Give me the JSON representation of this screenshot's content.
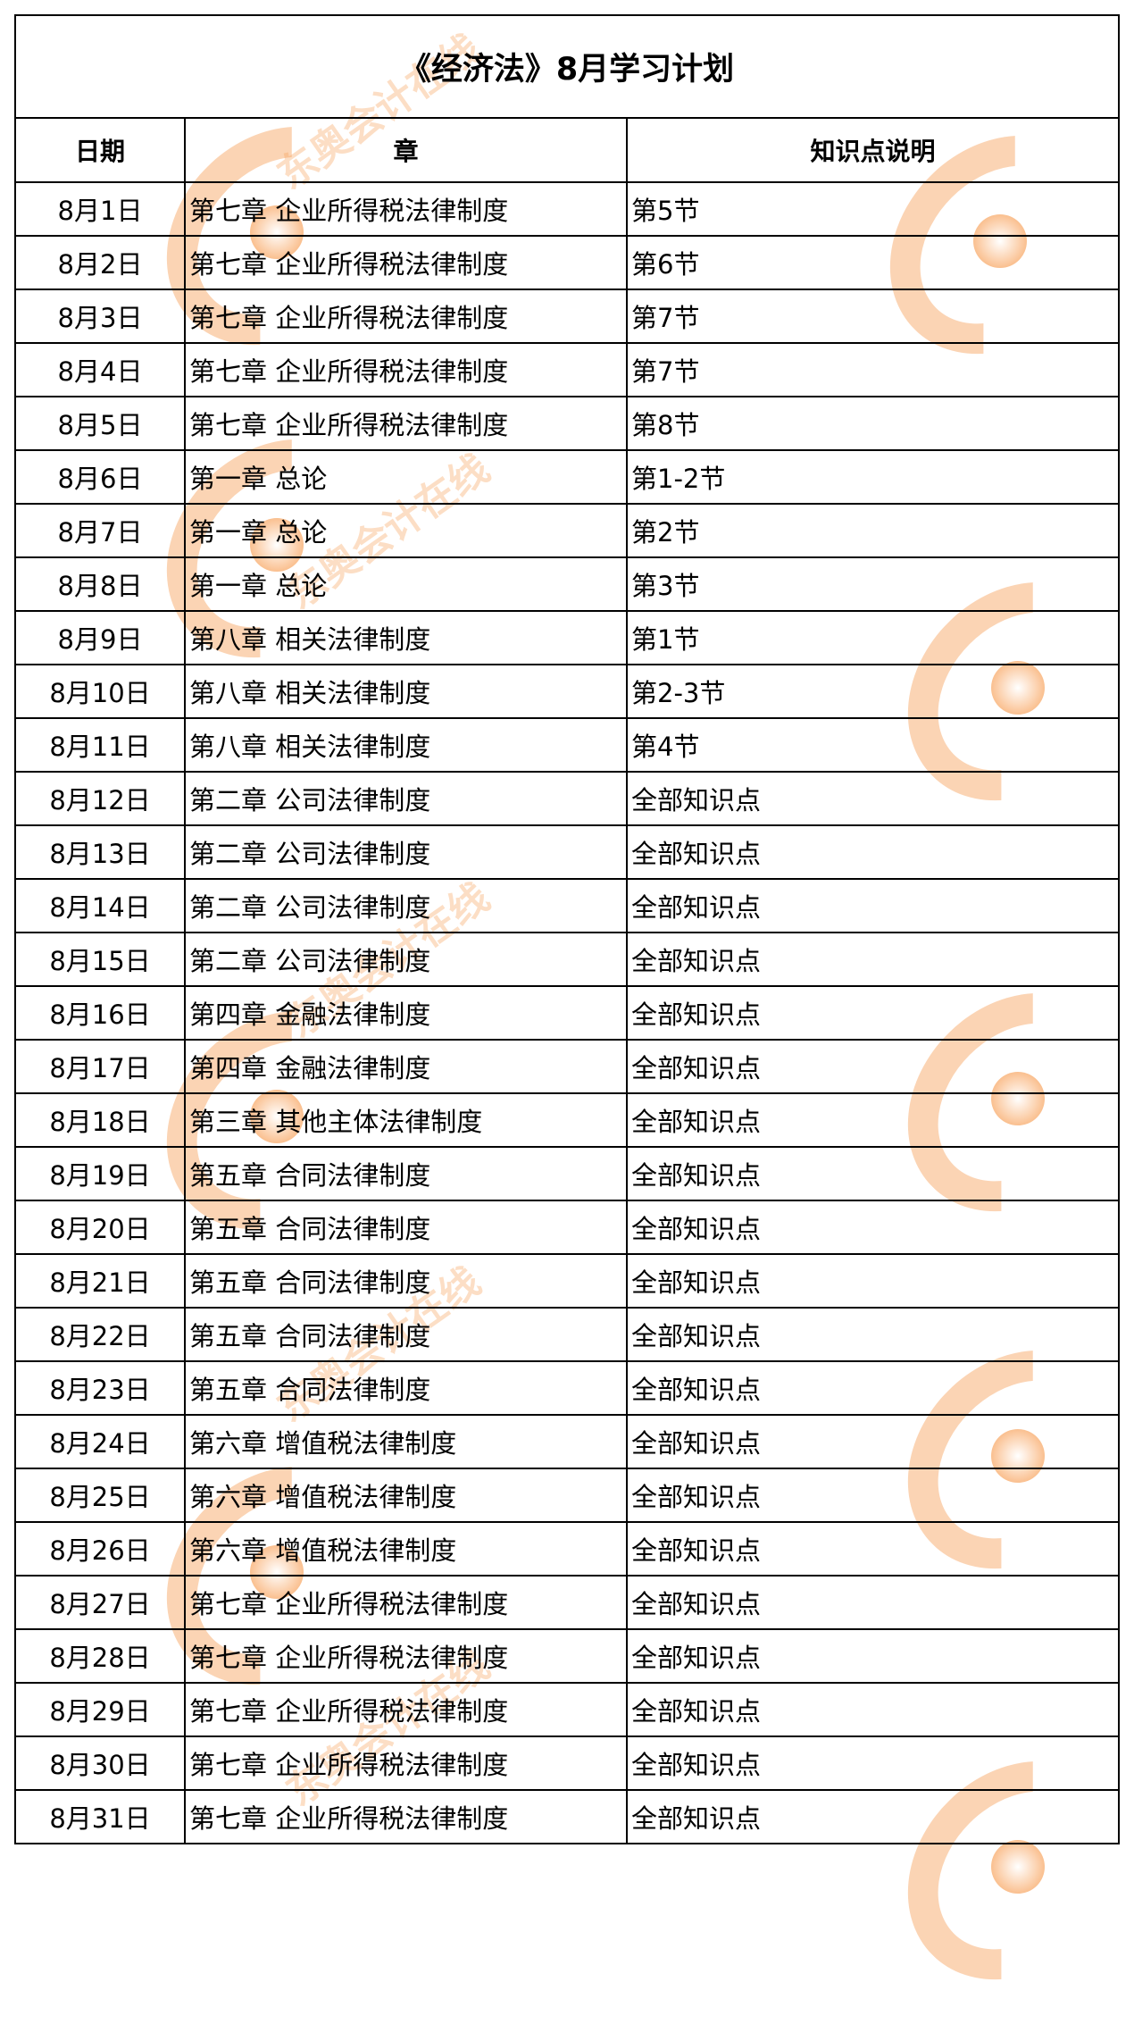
{
  "title": "《经济法》8月学习计划",
  "headers": {
    "date": "日期",
    "chapter": "章",
    "points": "知识点说明"
  },
  "rows": [
    {
      "date": "8月1日",
      "chapter": "第七章 企业所得税法律制度",
      "points": "第5节"
    },
    {
      "date": "8月2日",
      "chapter": "第七章 企业所得税法律制度",
      "points": "第6节"
    },
    {
      "date": "8月3日",
      "chapter": "第七章 企业所得税法律制度",
      "points": "第7节"
    },
    {
      "date": "8月4日",
      "chapter": "第七章 企业所得税法律制度",
      "points": "第7节"
    },
    {
      "date": "8月5日",
      "chapter": "第七章 企业所得税法律制度",
      "points": "第8节"
    },
    {
      "date": "8月6日",
      "chapter": "第一章 总论",
      "points": "第1-2节"
    },
    {
      "date": "8月7日",
      "chapter": "第一章 总论",
      "points": "第2节"
    },
    {
      "date": "8月8日",
      "chapter": "第一章 总论",
      "points": "第3节"
    },
    {
      "date": "8月9日",
      "chapter": "第八章 相关法律制度",
      "points": "第1节"
    },
    {
      "date": "8月10日",
      "chapter": "第八章 相关法律制度",
      "points": "第2-3节"
    },
    {
      "date": "8月11日",
      "chapter": "第八章 相关法律制度",
      "points": "第4节"
    },
    {
      "date": "8月12日",
      "chapter": "第二章 公司法律制度",
      "points": "全部知识点"
    },
    {
      "date": "8月13日",
      "chapter": "第二章 公司法律制度",
      "points": "全部知识点"
    },
    {
      "date": "8月14日",
      "chapter": "第二章 公司法律制度",
      "points": "全部知识点"
    },
    {
      "date": "8月15日",
      "chapter": "第二章 公司法律制度",
      "points": "全部知识点"
    },
    {
      "date": "8月16日",
      "chapter": "第四章 金融法律制度",
      "points": "全部知识点"
    },
    {
      "date": "8月17日",
      "chapter": "第四章 金融法律制度",
      "points": "全部知识点"
    },
    {
      "date": "8月18日",
      "chapter": "第三章 其他主体法律制度",
      "points": "全部知识点"
    },
    {
      "date": "8月19日",
      "chapter": "第五章 合同法律制度",
      "points": "全部知识点"
    },
    {
      "date": "8月20日",
      "chapter": "第五章 合同法律制度",
      "points": "全部知识点"
    },
    {
      "date": "8月21日",
      "chapter": "第五章 合同法律制度",
      "points": "全部知识点"
    },
    {
      "date": "8月22日",
      "chapter": "第五章 合同法律制度",
      "points": "全部知识点"
    },
    {
      "date": "8月23日",
      "chapter": "第五章 合同法律制度",
      "points": "全部知识点"
    },
    {
      "date": "8月24日",
      "chapter": "第六章 增值税法律制度",
      "points": "全部知识点"
    },
    {
      "date": "8月25日",
      "chapter": "第六章 增值税法律制度",
      "points": "全部知识点"
    },
    {
      "date": "8月26日",
      "chapter": "第六章 增值税法律制度",
      "points": "全部知识点"
    },
    {
      "date": "8月27日",
      "chapter": "第七章 企业所得税法律制度",
      "points": "全部知识点"
    },
    {
      "date": "8月28日",
      "chapter": "第七章 企业所得税法律制度",
      "points": "全部知识点"
    },
    {
      "date": "8月29日",
      "chapter": "第七章 企业所得税法律制度",
      "points": "全部知识点"
    },
    {
      "date": "8月30日",
      "chapter": "第七章 企业所得税法律制度",
      "points": "全部知识点"
    },
    {
      "date": "8月31日",
      "chapter": "第七章 企业所得税法律制度",
      "points": "全部知识点"
    }
  ],
  "watermark": {
    "text": "东奥会计在线",
    "url": "www.dongao.com",
    "color": "#f7a05a"
  }
}
